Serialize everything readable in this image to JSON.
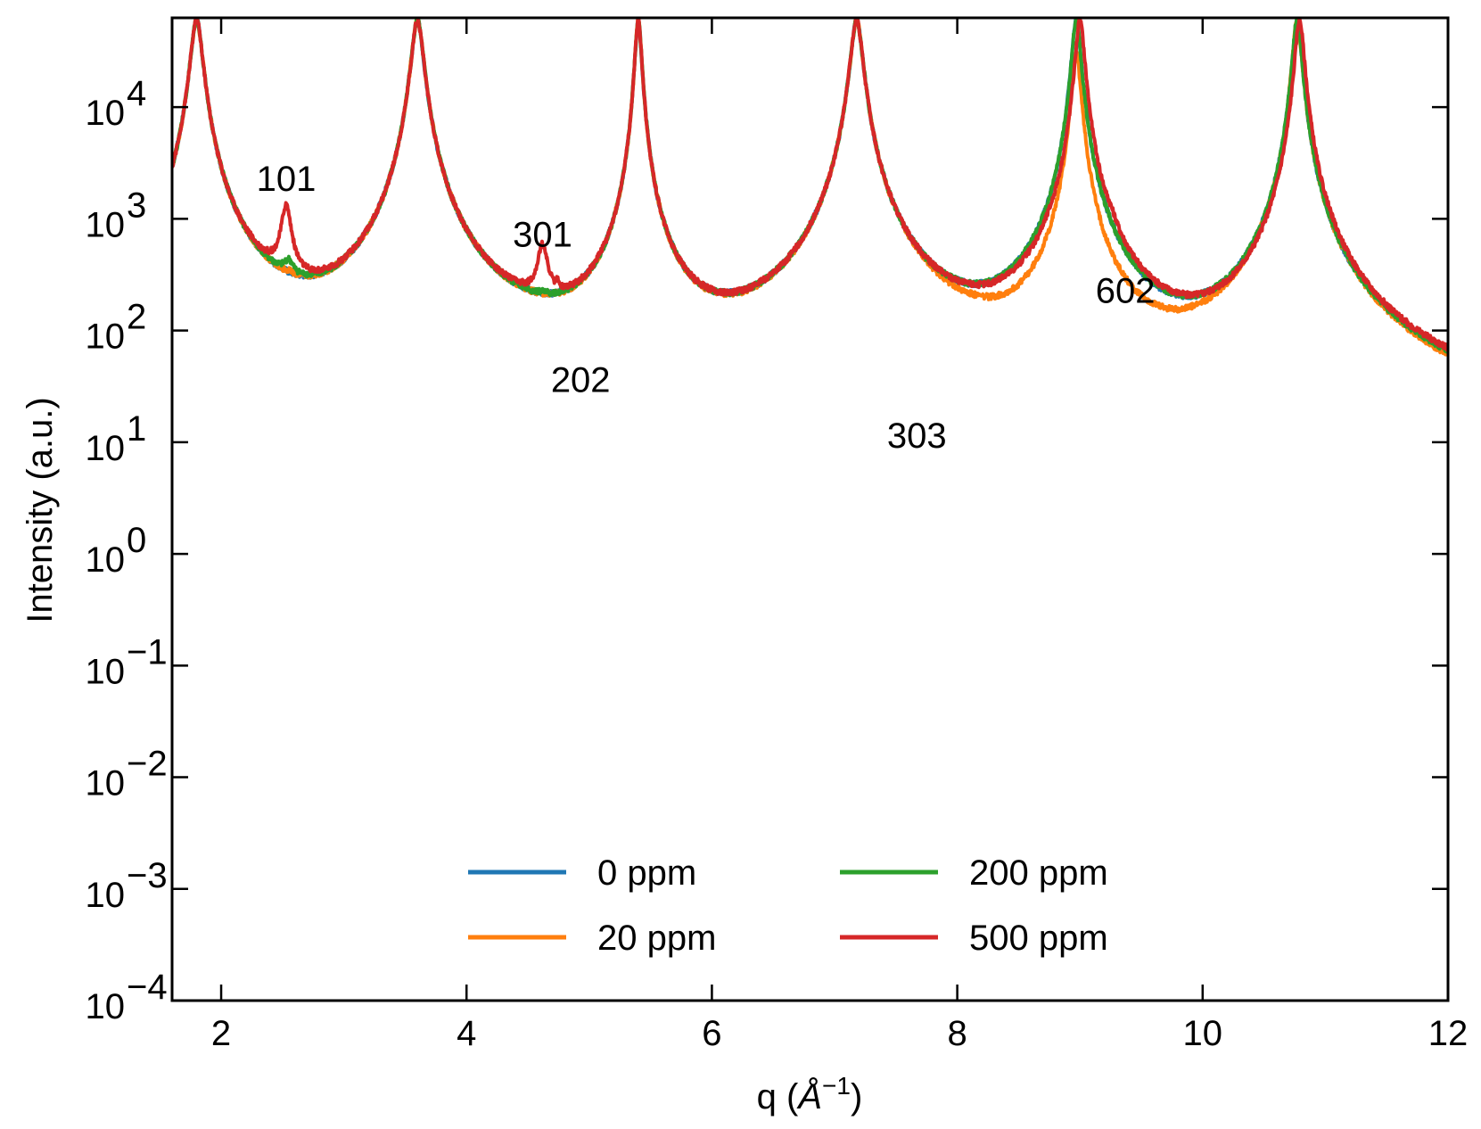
{
  "chart_data": {
    "type": "line",
    "title": "",
    "xlabel": "q (Å⁻¹)",
    "xlabel_parts": {
      "main": "q (",
      "unit": "Å",
      "exp": "−1",
      "close": ")"
    },
    "ylabel": "Intensity (a.u.)",
    "xscale": "linear",
    "yscale": "log",
    "xlim": [
      1.6,
      12
    ],
    "ylim_exp": [
      -4,
      4.8
    ],
    "xticks": [
      2,
      4,
      6,
      8,
      10,
      12
    ],
    "xtick_labels": [
      "2",
      "4",
      "6",
      "8",
      "10",
      "12"
    ],
    "yticks_exp": [
      -4,
      -3,
      -2,
      -1,
      0,
      1,
      2,
      3,
      4
    ],
    "ytick_base": "10",
    "ytick_exponents": [
      "−4",
      "−3",
      "−2",
      "−1",
      "0",
      "1",
      "2",
      "3",
      "4"
    ],
    "legend_position": "lower-center",
    "series": [
      {
        "name": "0 ppm",
        "color": "#1f77b4",
        "baseline": 0.01,
        "peaks": [
          [
            1.8,
            60000,
            0.045
          ],
          [
            2.55,
            1.0,
            0.04
          ],
          [
            3.6,
            60000,
            0.045
          ],
          [
            4.6,
            0.14,
            0.04
          ],
          [
            5.04,
            0.024,
            0.035
          ],
          [
            5.4,
            60000,
            0.025
          ],
          [
            7.18,
            60000,
            0.045
          ],
          [
            7.56,
            0.018,
            0.03
          ],
          [
            8.97,
            60000,
            0.035
          ],
          [
            9.2,
            0.18,
            0.05
          ],
          [
            10.05,
            0.011,
            0.05
          ],
          [
            10.77,
            60000,
            0.035
          ]
        ]
      },
      {
        "name": "20 ppm",
        "color": "#ff7f0e",
        "baseline": 0.1,
        "peaks": [
          [
            1.8,
            60000,
            0.045
          ],
          [
            2.55,
            10,
            0.04
          ],
          [
            3.6,
            60000,
            0.045
          ],
          [
            4.6,
            1.4,
            0.04
          ],
          [
            5.04,
            0.18,
            0.035
          ],
          [
            5.4,
            60000,
            0.025
          ],
          [
            6.13,
            0.11,
            0.015
          ],
          [
            7.18,
            60000,
            0.045
          ],
          [
            7.56,
            0.14,
            0.03
          ],
          [
            8.97,
            30000,
            0.035
          ],
          [
            9.2,
            1.5,
            0.05
          ],
          [
            10.77,
            60000,
            0.035
          ]
        ]
      },
      {
        "name": "200 ppm",
        "color": "#2ca02c",
        "baseline": 1.0,
        "peaks": [
          [
            1.8,
            60000,
            0.045
          ],
          [
            2.55,
            100,
            0.04
          ],
          [
            3.6,
            60000,
            0.045
          ],
          [
            4.62,
            5,
            0.04
          ],
          [
            5.07,
            1.5,
            0.035
          ],
          [
            5.4,
            60000,
            0.025
          ],
          [
            7.18,
            60000,
            0.045
          ],
          [
            7.6,
            1.1,
            0.03
          ],
          [
            8.97,
            60000,
            0.035
          ],
          [
            9.2,
            1.6,
            0.05
          ],
          [
            10.77,
            60000,
            0.035
          ]
        ]
      },
      {
        "name": "500 ppm",
        "color": "#d62728",
        "baseline": 3.0,
        "peaks": [
          [
            1.8,
            60000,
            0.045
          ],
          [
            2.53,
            1000,
            0.04
          ],
          [
            3.6,
            60000,
            0.045
          ],
          [
            4.62,
            380,
            0.04
          ],
          [
            4.74,
            30,
            0.01
          ],
          [
            5.08,
            11,
            0.035
          ],
          [
            5.4,
            60000,
            0.025
          ],
          [
            7.18,
            60000,
            0.045
          ],
          [
            7.6,
            5,
            0.03
          ],
          [
            9.0,
            60000,
            0.035
          ],
          [
            9.25,
            120,
            0.05
          ],
          [
            10.79,
            60000,
            0.035
          ]
        ]
      }
    ],
    "annotations": [
      {
        "text": "101",
        "x": 2.53,
        "y_exp": 3.25
      },
      {
        "text": "301",
        "x": 4.62,
        "y_exp": 2.75
      },
      {
        "text": "202",
        "x": 4.93,
        "y_exp": 1.45
      },
      {
        "text": "303",
        "x": 7.67,
        "y_exp": 0.95
      },
      {
        "text": "602",
        "x": 9.37,
        "y_exp": 2.25
      }
    ]
  }
}
